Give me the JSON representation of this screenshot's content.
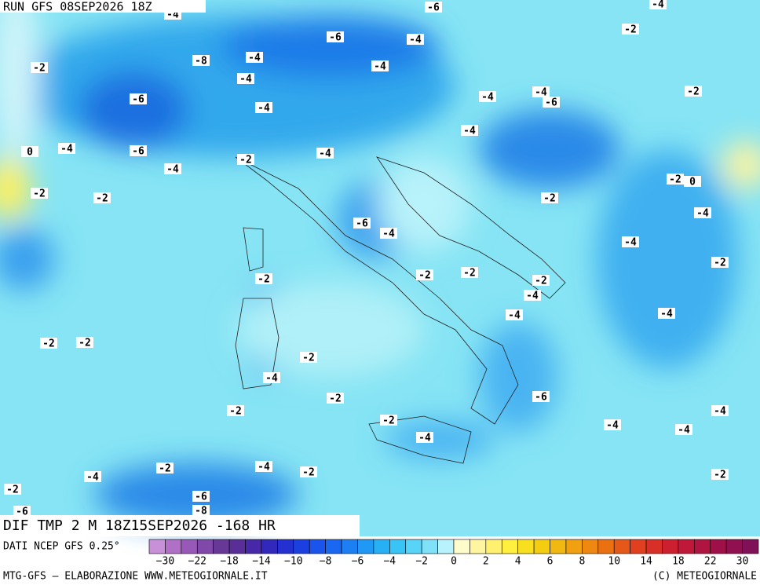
{
  "header": {
    "title": "RUN GFS 08SEP2026 18Z"
  },
  "footer": {
    "field": "DIF TMP 2 M 18Z15SEP2026 -168 HR",
    "source": "DATI NCEP GFS 0.25°"
  },
  "colorbar": {
    "colors": [
      "#c890d8",
      "#b070c8",
      "#9858b8",
      "#8048a8",
      "#683898",
      "#5a2e98",
      "#4628a8",
      "#3228bc",
      "#2430d0",
      "#1c40e0",
      "#1a54ec",
      "#1a68f2",
      "#1c80f4",
      "#2098f6",
      "#28b0f6",
      "#38c4f6",
      "#58d4f8",
      "#80e2f8",
      "#b8f2fc",
      "#fffccc",
      "#fff4a0",
      "#fff070",
      "#fff040",
      "#f8e020",
      "#f4cc10",
      "#f0b810",
      "#f0a010",
      "#ee8810",
      "#ea7010",
      "#e65818",
      "#e04020",
      "#d83028",
      "#cc2030",
      "#c01838",
      "#b01440",
      "#a01048",
      "#901050",
      "#801058"
    ],
    "labels": [
      "−30",
      "−22",
      "−18",
      "−14",
      "−10",
      "−8",
      "−6",
      "−4",
      "−2",
      "0",
      "2",
      "4",
      "6",
      "8",
      "10",
      "14",
      "18",
      "22",
      "30"
    ]
  },
  "credits": {
    "left": "MTG-GFS — ELABORAZIONE WWW.METEOGIORNALE.IT",
    "right": "(C) METEOGIORNALE"
  },
  "contour_labels": [
    "-4",
    "-6",
    "-4",
    "-2",
    "-6",
    "-4",
    "-8",
    "-4",
    "-4",
    "-2",
    "-4",
    "-6",
    "-4",
    "-4",
    "-6",
    "-2",
    "-4",
    "-4",
    "0",
    "-4",
    "-6",
    "-4",
    "-2",
    "-4",
    "-2",
    "-2",
    "-2",
    "-2",
    "0",
    "-6",
    "-4",
    "-4",
    "-4",
    "-2",
    "-2",
    "-2",
    "-2",
    "-2",
    "-4",
    "-4",
    "-4",
    "-2",
    "-2",
    "-2",
    "-4",
    "-2",
    "-6",
    "-2",
    "-4",
    "-2",
    "-4",
    "-4",
    "-4",
    "-4",
    "-2",
    "-4",
    "-2",
    "-2",
    "-2",
    "-6",
    "-8",
    "-6"
  ]
}
